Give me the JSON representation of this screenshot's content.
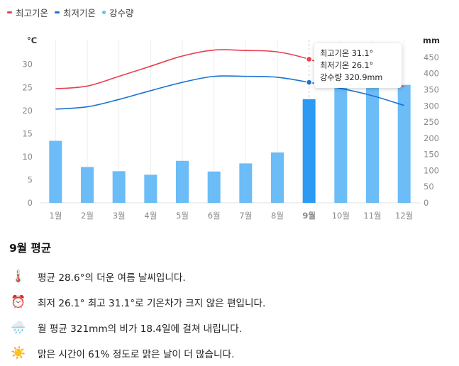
{
  "legend": [
    {
      "label": "최고기온",
      "color": "#ea3e4f",
      "shape": "dash"
    },
    {
      "label": "최저기온",
      "color": "#1a73d2",
      "shape": "dash"
    },
    {
      "label": "강수량",
      "color": "#6bbcf7",
      "shape": "dot"
    }
  ],
  "chart_data": {
    "type": "bar",
    "categories": [
      "1월",
      "2월",
      "3월",
      "4월",
      "5월",
      "6월",
      "7월",
      "8월",
      "9월",
      "10월",
      "11월",
      "12월"
    ],
    "selected_category": "9월",
    "y_left": {
      "unit": "°C",
      "range": [
        0,
        35
      ],
      "ticks": [
        0,
        5,
        10,
        15,
        20,
        25,
        30
      ]
    },
    "y_right": {
      "unit": "mm",
      "range": [
        0,
        500
      ],
      "ticks": [
        0,
        50,
        100,
        150,
        200,
        250,
        300,
        350,
        400,
        450
      ]
    },
    "series": [
      {
        "name": "강수량",
        "type": "bar",
        "axis": "right",
        "color": "#6bbcf7",
        "highlight_color": "#2b9af3",
        "values": [
          192,
          111,
          98,
          87,
          130,
          97,
          122,
          156,
          320.9,
          380,
          380,
          365
        ]
      },
      {
        "name": "최고기온",
        "type": "line",
        "axis": "left",
        "color": "#ea3e4f",
        "values": [
          24.7,
          25.3,
          27.4,
          29.6,
          31.8,
          33.1,
          33.0,
          32.7,
          31.1,
          28.5,
          26.8,
          25.2
        ]
      },
      {
        "name": "최저기온",
        "type": "line",
        "axis": "left",
        "color": "#1a73d2",
        "values": [
          20.3,
          20.8,
          22.4,
          24.3,
          26.1,
          27.4,
          27.4,
          27.2,
          26.1,
          24.8,
          23.2,
          21.1
        ]
      }
    ],
    "grid": true,
    "legend_position": "top-left"
  },
  "tooltip": {
    "lines": [
      "최고기온 31.1°",
      "최저기온 26.1°",
      "강수량 320.9mm"
    ]
  },
  "summary": {
    "title": "9월 평균",
    "items": [
      {
        "icon": "🌡️",
        "icon_name": "thermometer-icon",
        "text": "평균 28.6°의 더운 여름 날씨입니다."
      },
      {
        "icon": "⏰",
        "icon_name": "alarm-clock-icon",
        "text": "최저 26.1° 최고 31.1°로 기온차가 크지 않은 편입니다."
      },
      {
        "icon": "🌧️",
        "icon_name": "rain-cloud-icon",
        "text": "월 평균 321mm의 비가 18.4일에 걸쳐 내립니다."
      },
      {
        "icon": "☀️",
        "icon_name": "sun-icon",
        "text": "맑은 시간이 61% 정도로 맑은 날이 더 많습니다."
      }
    ]
  }
}
